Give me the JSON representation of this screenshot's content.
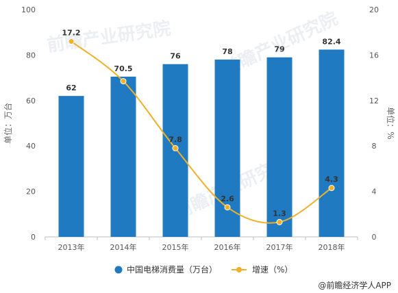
{
  "chart_data": {
    "type": "bar",
    "categories": [
      "2013年",
      "2014年",
      "2015年",
      "2016年",
      "2017年",
      "2018年"
    ],
    "series": [
      {
        "name": "中国电梯消费量（万台）",
        "type": "bar",
        "axis": "left",
        "values": [
          62,
          70.5,
          76,
          78,
          79,
          82.4
        ],
        "color": "#1F7AC2"
      },
      {
        "name": "增速（%）",
        "type": "line",
        "axis": "right",
        "values": [
          17.2,
          13.7,
          7.8,
          2.6,
          1.3,
          4.3
        ],
        "color": "#F0B028",
        "labels": [
          "17.2",
          "",
          "7.8",
          "2.6",
          "1.3",
          "4.3"
        ]
      }
    ],
    "bar_labels": [
      "62",
      "70.5",
      "76",
      "78",
      "79",
      "82.4"
    ],
    "ylim": [
      0,
      100
    ],
    "y_ticks": [
      0,
      20,
      40,
      60,
      80,
      100
    ],
    "ylabel": "单位：万台",
    "y2lim": [
      0,
      20
    ],
    "y2_ticks": [
      0,
      4,
      8,
      12,
      16,
      20
    ],
    "y2label": "单位：%",
    "grid": false,
    "legend_position": "bottom"
  },
  "credit": "@前瞻经济学人APP",
  "watermark": [
    "前瞻产业研究院",
    "前瞻产业研究院",
    "前瞻产业研究院"
  ]
}
